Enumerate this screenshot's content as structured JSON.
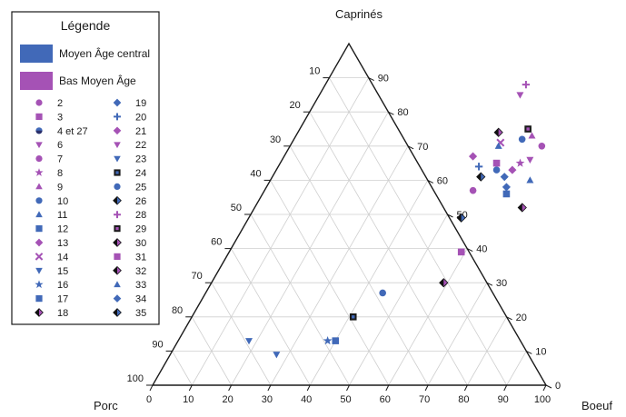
{
  "chart_data": {
    "type": "scatter",
    "subtype": "ternary",
    "axes": {
      "top": "Caprinés",
      "left": "Porc",
      "right": "Boeuf"
    },
    "bottom_ticks": [
      "0",
      "10",
      "20",
      "30",
      "40",
      "50",
      "60",
      "70",
      "80",
      "90",
      "100"
    ],
    "left_ticks": [
      "10",
      "20",
      "30",
      "40",
      "50",
      "60",
      "70",
      "80",
      "90",
      "100"
    ],
    "right_ticks": [
      "0",
      "10",
      "20",
      "30",
      "40",
      "50",
      "60",
      "70",
      "80",
      "90"
    ],
    "grid": true,
    "legend": {
      "title": "Légende",
      "placement": "top-left",
      "groups": [
        {
          "label": "Moyen Âge central",
          "color": "#4169b8"
        },
        {
          "label": "Bas Moyen Âge",
          "color": "#a552b5"
        }
      ],
      "items": [
        {
          "label": "2",
          "shape": "circle",
          "color": "#a552b5"
        },
        {
          "label": "3",
          "shape": "square",
          "color": "#a552b5"
        },
        {
          "label": "4 et 27",
          "shape": "half-circle",
          "color": "#4169b8"
        },
        {
          "label": "6",
          "shape": "tri-down",
          "color": "#a552b5"
        },
        {
          "label": "7",
          "shape": "circle",
          "color": "#a552b5"
        },
        {
          "label": "8",
          "shape": "star",
          "color": "#a552b5"
        },
        {
          "label": "9",
          "shape": "tri-up",
          "color": "#a552b5"
        },
        {
          "label": "10",
          "shape": "circle",
          "color": "#4169b8"
        },
        {
          "label": "11",
          "shape": "tri-up",
          "color": "#4169b8"
        },
        {
          "label": "12",
          "shape": "square",
          "color": "#4169b8"
        },
        {
          "label": "13",
          "shape": "diamond",
          "color": "#a552b5"
        },
        {
          "label": "14",
          "shape": "x",
          "color": "#a552b5"
        },
        {
          "label": "15",
          "shape": "tri-down",
          "color": "#4169b8"
        },
        {
          "label": "16",
          "shape": "star",
          "color": "#4169b8"
        },
        {
          "label": "17",
          "shape": "square",
          "color": "#4169b8"
        },
        {
          "label": "18",
          "shape": "half-diamond",
          "color": "#a552b5"
        },
        {
          "label": "19",
          "shape": "diamond",
          "color": "#4169b8"
        },
        {
          "label": "20",
          "shape": "plus",
          "color": "#4169b8"
        },
        {
          "label": "21",
          "shape": "diamond",
          "color": "#a552b5"
        },
        {
          "label": "22",
          "shape": "tri-down",
          "color": "#a552b5"
        },
        {
          "label": "23",
          "shape": "tri-down",
          "color": "#4169b8"
        },
        {
          "label": "24",
          "shape": "square-dot",
          "color": "#4169b8"
        },
        {
          "label": "25",
          "shape": "circle",
          "color": "#4169b8"
        },
        {
          "label": "26",
          "shape": "half-diamond",
          "color": "#4169b8"
        },
        {
          "label": "28",
          "shape": "plus",
          "color": "#a552b5"
        },
        {
          "label": "29",
          "shape": "square-dot",
          "color": "#a552b5"
        },
        {
          "label": "30",
          "shape": "half-diamond",
          "color": "#a552b5"
        },
        {
          "label": "31",
          "shape": "square",
          "color": "#a552b5"
        },
        {
          "label": "32",
          "shape": "half-diamond",
          "color": "#a552b5"
        },
        {
          "label": "33",
          "shape": "tri-up",
          "color": "#4169b8"
        },
        {
          "label": "34",
          "shape": "diamond",
          "color": "#4169b8"
        },
        {
          "label": "35",
          "shape": "half-diamond",
          "color": "#4169b8"
        }
      ]
    },
    "points": [
      {
        "boeuf": 51,
        "caprines": 88,
        "shape": "plus",
        "color": "#a552b5"
      },
      {
        "boeuf": 51,
        "caprines": 85,
        "shape": "tri-down",
        "color": "#a552b5"
      },
      {
        "boeuf": 58,
        "caprines": 75,
        "shape": "square-dot",
        "color": "#a552b5"
      },
      {
        "boeuf": 51,
        "caprines": 74,
        "shape": "half-diamond",
        "color": "#a552b5"
      },
      {
        "boeuf": 60,
        "caprines": 73,
        "shape": "tri-up",
        "color": "#a552b5"
      },
      {
        "boeuf": 58,
        "caprines": 72,
        "shape": "circle",
        "color": "#4169b8"
      },
      {
        "boeuf": 53,
        "caprines": 71,
        "shape": "x",
        "color": "#a552b5"
      },
      {
        "boeuf": 53,
        "caprines": 70,
        "shape": "tri-up",
        "color": "#4169b8"
      },
      {
        "boeuf": 64,
        "caprines": 70,
        "shape": "circle",
        "color": "#a552b5"
      },
      {
        "boeuf": 48,
        "caprines": 67,
        "shape": "diamond",
        "color": "#a552b5"
      },
      {
        "boeuf": 63,
        "caprines": 66,
        "shape": "tri-down",
        "color": "#a552b5"
      },
      {
        "boeuf": 61,
        "caprines": 65,
        "shape": "star",
        "color": "#a552b5"
      },
      {
        "boeuf": 55,
        "caprines": 65,
        "shape": "square",
        "color": "#a552b5"
      },
      {
        "boeuf": 60,
        "caprines": 63,
        "shape": "diamond",
        "color": "#a552b5"
      },
      {
        "boeuf": 51,
        "caprines": 64,
        "shape": "plus",
        "color": "#4169b8"
      },
      {
        "boeuf": 56,
        "caprines": 63,
        "shape": "circle",
        "color": "#4169b8"
      },
      {
        "boeuf": 53,
        "caprines": 61,
        "shape": "half-diamond",
        "color": "#4169b8"
      },
      {
        "boeuf": 59,
        "caprines": 61,
        "shape": "diamond",
        "color": "#4169b8"
      },
      {
        "boeuf": 66,
        "caprines": 60,
        "shape": "tri-up",
        "color": "#4169b8"
      },
      {
        "boeuf": 53,
        "caprines": 57,
        "shape": "circle",
        "color": "#a552b5"
      },
      {
        "boeuf": 61,
        "caprines": 58,
        "shape": "diamond",
        "color": "#4169b8"
      },
      {
        "boeuf": 62,
        "caprines": 56,
        "shape": "square",
        "color": "#4169b8"
      },
      {
        "boeuf": 68,
        "caprines": 52,
        "shape": "half-diamond",
        "color": "#a552b5"
      },
      {
        "boeuf": 54,
        "caprines": 49,
        "shape": "half-diamond",
        "color": "#4169b8"
      },
      {
        "boeuf": 59,
        "caprines": 39,
        "shape": "square",
        "color": "#a552b5"
      },
      {
        "boeuf": 59,
        "caprines": 30,
        "shape": "half-diamond",
        "color": "#a552b5"
      },
      {
        "boeuf": 45,
        "caprines": 27,
        "shape": "circle",
        "color": "#4169b8"
      },
      {
        "boeuf": 41,
        "caprines": 20,
        "shape": "square-dot",
        "color": "#4169b8"
      },
      {
        "boeuf": 38,
        "caprines": 13,
        "shape": "star",
        "color": "#4169b8"
      },
      {
        "boeuf": 40,
        "caprines": 13,
        "shape": "square",
        "color": "#4169b8"
      },
      {
        "boeuf": 18,
        "caprines": 13,
        "shape": "tri-down",
        "color": "#4169b8"
      },
      {
        "boeuf": 27,
        "caprines": 9,
        "shape": "tri-down",
        "color": "#4169b8"
      }
    ]
  }
}
